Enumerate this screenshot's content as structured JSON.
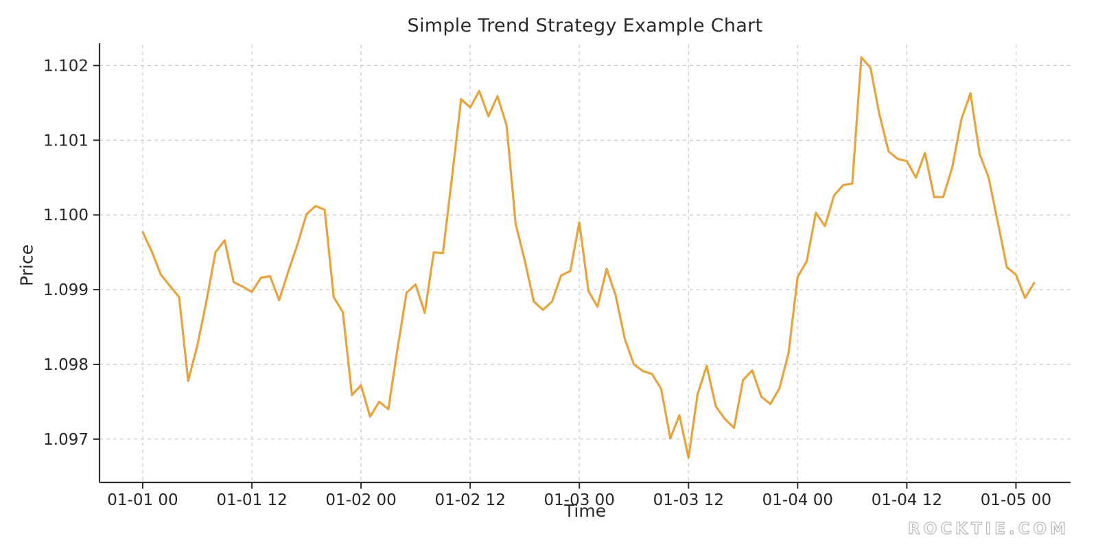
{
  "page": {
    "background": "#ffffff"
  },
  "chart": {
    "title": "Simple Trend Strategy Example Chart",
    "xlabel": "Time",
    "ylabel": "Price",
    "watermark": "ROCKTIE.COM",
    "colors": {
      "line": "#E8A33C",
      "grid": "#c9c9c9",
      "spine": "#2e2e2e",
      "tick_text": "#262626",
      "title_text": "#2b2b2b"
    }
  },
  "chart_data": {
    "type": "line",
    "title": "Simple Trend Strategy Example Chart",
    "xlabel": "Time",
    "ylabel": "Price",
    "series_name": "Price",
    "x_unit": "hours elapsed since first tick (hourly data)",
    "x_tick_hours": [
      0,
      12,
      24,
      36,
      48,
      60,
      72,
      84,
      96
    ],
    "x_tick_labels": [
      "01-01 00",
      "01-01 12",
      "01-02 00",
      "01-02 12",
      "01-03 00",
      "01-03 12",
      "01-04 00",
      "01-04 12",
      "01-05 00"
    ],
    "y_ticks": [
      1.097,
      1.098,
      1.099,
      1.1,
      1.101,
      1.102
    ],
    "y_tick_labels": [
      "1.097",
      "1.098",
      "1.099",
      "1.100",
      "1.101",
      "1.102"
    ],
    "xlim_hours": [
      -4.75,
      102.0
    ],
    "ylim": [
      1.09642,
      1.10228
    ],
    "grid": "dashed",
    "legend": "none",
    "values": [
      1.09977,
      1.09951,
      1.0992,
      1.09905,
      1.0989,
      1.09778,
      1.09825,
      1.09884,
      1.0995,
      1.09966,
      1.0991,
      1.09904,
      1.09897,
      1.09916,
      1.09918,
      1.09886,
      1.09924,
      1.0996,
      1.10001,
      1.10012,
      1.10007,
      1.0989,
      1.0987,
      1.09759,
      1.09772,
      1.0973,
      1.0975,
      1.0974,
      1.0982,
      1.09896,
      1.09907,
      1.09869,
      1.0995,
      1.09949,
      1.1005,
      1.10155,
      1.10144,
      1.10166,
      1.10132,
      1.10159,
      1.1012,
      1.09988,
      1.09939,
      1.09884,
      1.09873,
      1.09884,
      1.09919,
      1.09925,
      1.0999,
      1.09898,
      1.09877,
      1.09928,
      1.09892,
      1.09834,
      1.098,
      1.09791,
      1.09787,
      1.09767,
      1.09701,
      1.09732,
      1.09675,
      1.0976,
      1.09798,
      1.09744,
      1.09727,
      1.09715,
      1.09779,
      1.09792,
      1.09757,
      1.09747,
      1.09768,
      1.09815,
      1.09917,
      1.09938,
      1.10003,
      1.09985,
      1.10026,
      1.1004,
      1.10042,
      1.10211,
      1.10197,
      1.10134,
      1.10085,
      1.10075,
      1.10072,
      1.1005,
      1.10083,
      1.10024,
      1.10024,
      1.10064,
      1.10128,
      1.10163,
      1.10082,
      1.1005,
      1.0999,
      1.0993,
      1.0992,
      1.09889,
      1.09909
    ]
  }
}
